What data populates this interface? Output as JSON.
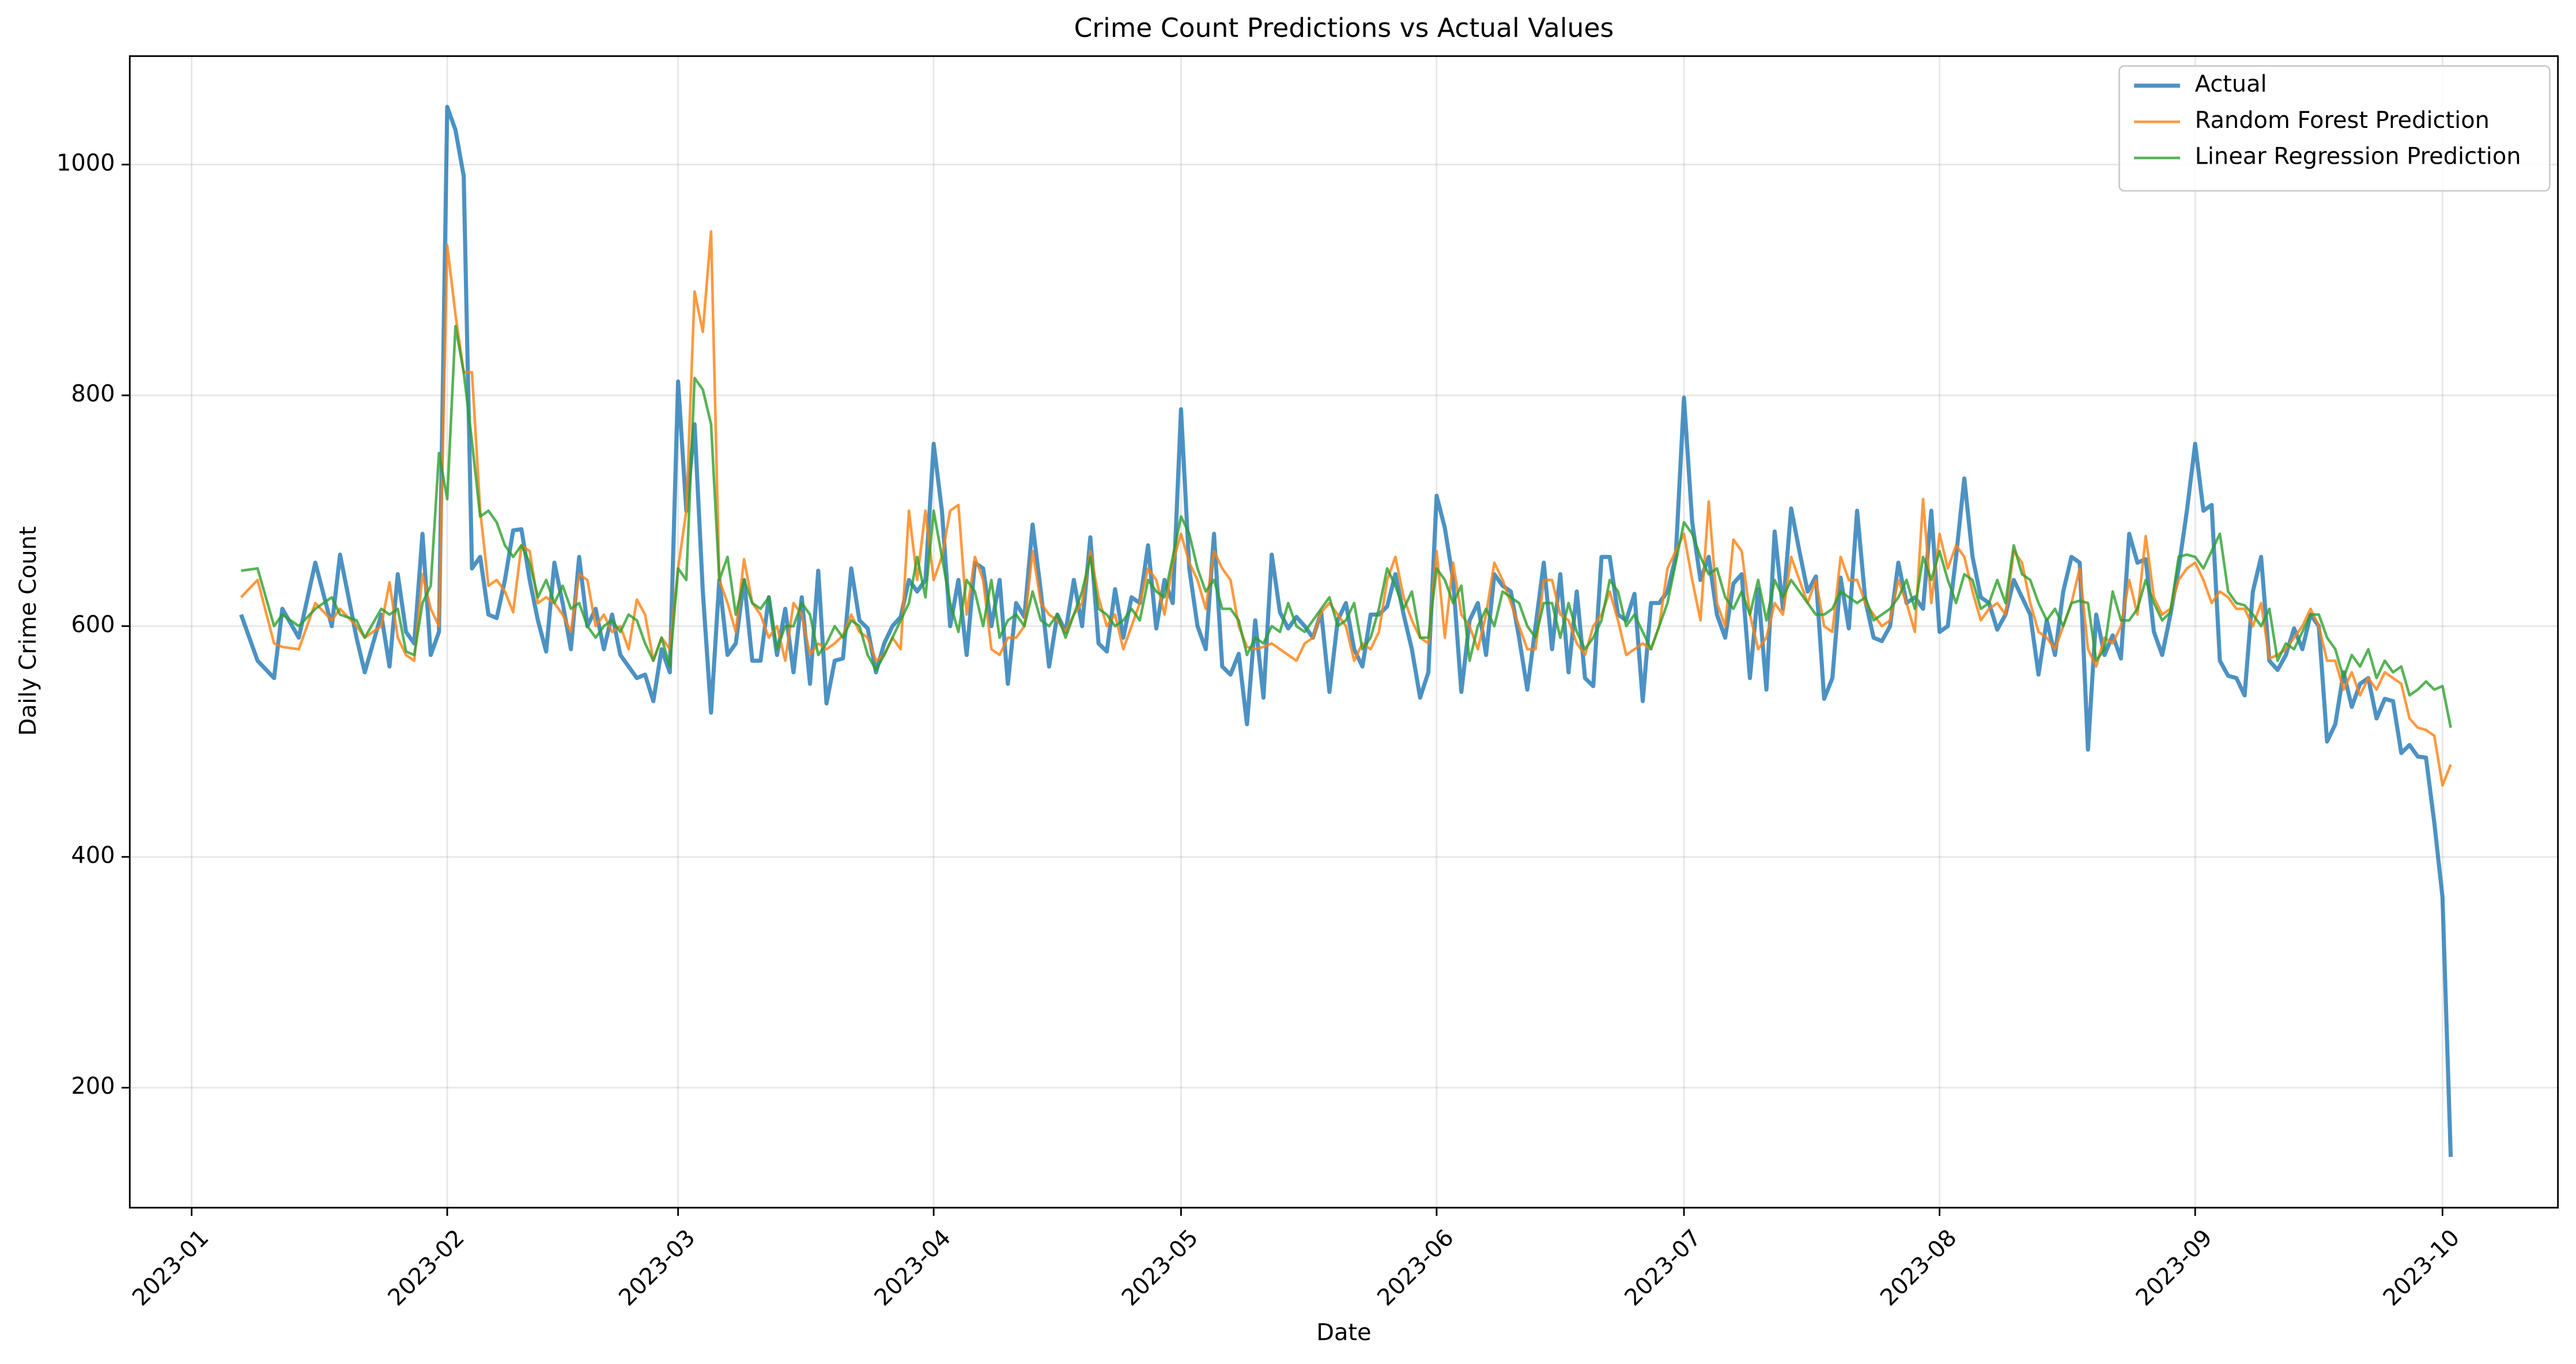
{
  "chart_data": {
    "type": "line",
    "title": "Crime Count Predictions vs Actual Values",
    "x_label": "Date",
    "y_label": "Daily Crime Count",
    "x": [
      6,
      8,
      10,
      11,
      13,
      15,
      17,
      18,
      20,
      21,
      23,
      24,
      25,
      26,
      27,
      28,
      29,
      30,
      31,
      32,
      33,
      34,
      35,
      36,
      37,
      38,
      39,
      40,
      41,
      42,
      43,
      44,
      45,
      46,
      47,
      48,
      49,
      50,
      51,
      52,
      53,
      54,
      55,
      56,
      57,
      58,
      59,
      60,
      61,
      62,
      63,
      64,
      65,
      66,
      67,
      68,
      69,
      70,
      71,
      72,
      73,
      74,
      75,
      76,
      77,
      78,
      79,
      80,
      81,
      82,
      83,
      84,
      85,
      86,
      87,
      88,
      89,
      90,
      91,
      92,
      93,
      94,
      95,
      96,
      97,
      98,
      99,
      100,
      101,
      102,
      103,
      104,
      105,
      106,
      107,
      108,
      109,
      110,
      111,
      112,
      113,
      114,
      115,
      116,
      117,
      118,
      119,
      120,
      121,
      122,
      123,
      124,
      125,
      126,
      127,
      128,
      129,
      130,
      131,
      132,
      133,
      134,
      135,
      136,
      137,
      138,
      139,
      140,
      141,
      142,
      143,
      144,
      145,
      146,
      147,
      148,
      149,
      150,
      151,
      152,
      153,
      154,
      155,
      156,
      157,
      158,
      159,
      160,
      161,
      162,
      163,
      164,
      165,
      166,
      167,
      168,
      169,
      170,
      171,
      172,
      173,
      174,
      175,
      176,
      177,
      178,
      179,
      180,
      181,
      182,
      183,
      184,
      185,
      186,
      187,
      188,
      189,
      190,
      191,
      192,
      193,
      194,
      195,
      196,
      197,
      198,
      199,
      200,
      201,
      202,
      203,
      204,
      205,
      206,
      207,
      208,
      209,
      210,
      211,
      212,
      213,
      214,
      215,
      216,
      217,
      218,
      219,
      220,
      221,
      222,
      223,
      224,
      225,
      226,
      227,
      228,
      229,
      230,
      231,
      232,
      233,
      234,
      235,
      236,
      237,
      238,
      239,
      240,
      241,
      242,
      243,
      244,
      245,
      246,
      247,
      248,
      249,
      250,
      251,
      252,
      253,
      254,
      255,
      256,
      257,
      258,
      259,
      260,
      261,
      262,
      263,
      264,
      265,
      266,
      267,
      268,
      269,
      270,
      271,
      272,
      273,
      274
    ],
    "series": [
      {
        "name": "Actual",
        "color": "#1f77b4",
        "width": 2.5,
        "values": [
          610,
          570,
          555,
          615,
          590,
          655,
          600,
          662,
          590,
          560,
          610,
          565,
          645,
          595,
          585,
          680,
          575,
          595,
          1050,
          1030,
          990,
          650,
          660,
          610,
          607,
          640,
          683,
          684,
          640,
          605,
          578,
          655,
          620,
          580,
          660,
          600,
          615,
          580,
          610,
          575,
          565,
          555,
          558,
          535,
          580,
          560,
          812,
          700,
          775,
          630,
          525,
          640,
          575,
          585,
          640,
          570,
          570,
          625,
          575,
          615,
          560,
          625,
          550,
          648,
          533,
          570,
          572,
          650,
          605,
          598,
          560,
          585,
          600,
          608,
          640,
          630,
          640,
          758,
          700,
          600,
          640,
          575,
          655,
          650,
          600,
          640,
          550,
          620,
          608,
          688,
          630,
          565,
          610,
          595,
          640,
          600,
          677,
          585,
          578,
          632,
          590,
          625,
          620,
          670,
          598,
          640,
          620,
          788,
          650,
          600,
          580,
          680,
          565,
          558,
          576,
          515,
          605,
          538,
          662,
          612,
          598,
          608,
          600,
          590,
          612,
          543,
          605,
          620,
          580,
          565,
          610,
          610,
          617,
          645,
          610,
          580,
          538,
          560,
          713,
          685,
          640,
          543,
          605,
          620,
          575,
          645,
          635,
          630,
          590,
          545,
          600,
          655,
          580,
          645,
          560,
          630,
          555,
          548,
          660,
          660,
          610,
          605,
          628,
          535,
          620,
          620,
          630,
          660,
          798,
          690,
          640,
          660,
          610,
          590,
          637,
          645,
          555,
          632,
          545,
          682,
          615,
          702,
          665,
          630,
          643,
          537,
          555,
          642,
          598,
          700,
          622,
          590,
          587,
          600,
          655,
          620,
          625,
          615,
          700,
          595,
          600,
          660,
          728,
          660,
          625,
          620,
          597,
          610,
          640,
          625,
          610,
          558,
          605,
          575,
          630,
          660,
          655,
          493,
          610,
          575,
          592,
          572,
          680,
          655,
          658,
          595,
          575,
          610,
          650,
          700,
          758,
          700,
          705,
          570,
          557,
          555,
          540,
          630,
          660,
          570,
          562,
          575,
          598,
          580,
          610,
          600,
          500,
          515,
          560,
          530,
          550,
          555,
          520,
          537,
          535,
          490,
          497,
          487,
          486,
          430,
          365,
          140
        ]
      },
      {
        "name": "Random Forest Prediction",
        "color": "#ff7f0e",
        "width": 1.6,
        "values": [
          625,
          640,
          585,
          582,
          580,
          620,
          605,
          615,
          600,
          590,
          600,
          638,
          590,
          575,
          570,
          645,
          615,
          600,
          930,
          870,
          820,
          820,
          700,
          635,
          640,
          630,
          612,
          670,
          665,
          620,
          625,
          620,
          610,
          595,
          645,
          640,
          600,
          610,
          595,
          600,
          580,
          623,
          610,
          570,
          590,
          580,
          650,
          700,
          890,
          855,
          942,
          640,
          620,
          595,
          658,
          620,
          610,
          590,
          600,
          570,
          620,
          610,
          575,
          585,
          580,
          585,
          592,
          610,
          595,
          590,
          570,
          575,
          590,
          580,
          700,
          640,
          700,
          640,
          660,
          700,
          705,
          610,
          660,
          640,
          580,
          575,
          590,
          590,
          600,
          665,
          620,
          610,
          605,
          595,
          610,
          620,
          665,
          625,
          600,
          610,
          580,
          600,
          620,
          650,
          640,
          610,
          655,
          680,
          655,
          640,
          615,
          665,
          650,
          640,
          600,
          582,
          580,
          582,
          585,
          580,
          575,
          570,
          585,
          590,
          612,
          620,
          610,
          600,
          570,
          585,
          580,
          595,
          640,
          660,
          625,
          605,
          590,
          585,
          665,
          590,
          655,
          610,
          600,
          580,
          610,
          655,
          640,
          620,
          600,
          580,
          580,
          640,
          640,
          610,
          605,
          585,
          575,
          600,
          610,
          630,
          605,
          575,
          580,
          585,
          580,
          600,
          650,
          665,
          680,
          640,
          605,
          708,
          620,
          600,
          675,
          665,
          610,
          580,
          590,
          620,
          610,
          660,
          640,
          620,
          640,
          600,
          595,
          660,
          640,
          640,
          620,
          610,
          600,
          605,
          640,
          620,
          595,
          710,
          620,
          680,
          650,
          670,
          660,
          630,
          605,
          615,
          620,
          610,
          665,
          655,
          620,
          595,
          590,
          580,
          600,
          620,
          650,
          580,
          565,
          590,
          585,
          600,
          640,
          610,
          678,
          625,
          610,
          615,
          640,
          650,
          655,
          640,
          620,
          630,
          625,
          615,
          615,
          600,
          620,
          572,
          575,
          580,
          590,
          600,
          615,
          600,
          570,
          570,
          545,
          560,
          540,
          555,
          545,
          560,
          555,
          550,
          520,
          512,
          510,
          505,
          462,
          480
        ]
      },
      {
        "name": "Linear Regression Prediction",
        "color": "#2ca02c",
        "width": 1.6,
        "values": [
          648,
          650,
          600,
          610,
          600,
          615,
          625,
          610,
          605,
          590,
          615,
          610,
          615,
          578,
          575,
          620,
          635,
          750,
          710,
          860,
          820,
          760,
          695,
          700,
          690,
          670,
          660,
          670,
          655,
          625,
          640,
          620,
          635,
          615,
          620,
          600,
          590,
          600,
          605,
          595,
          610,
          605,
          585,
          570,
          590,
          565,
          650,
          640,
          815,
          805,
          775,
          640,
          660,
          610,
          640,
          620,
          615,
          625,
          580,
          600,
          600,
          620,
          610,
          575,
          585,
          600,
          590,
          605,
          600,
          575,
          562,
          575,
          590,
          605,
          620,
          660,
          625,
          700,
          660,
          620,
          595,
          640,
          630,
          600,
          640,
          590,
          605,
          610,
          600,
          630,
          605,
          600,
          610,
          590,
          610,
          630,
          660,
          615,
          610,
          600,
          605,
          615,
          605,
          640,
          630,
          625,
          660,
          695,
          680,
          650,
          630,
          640,
          615,
          615,
          605,
          575,
          590,
          585,
          600,
          595,
          620,
          600,
          595,
          605,
          615,
          625,
          600,
          605,
          620,
          580,
          590,
          615,
          650,
          635,
          615,
          630,
          590,
          590,
          650,
          640,
          620,
          635,
          570,
          600,
          615,
          600,
          630,
          625,
          620,
          600,
          590,
          620,
          620,
          590,
          620,
          595,
          580,
          590,
          605,
          640,
          630,
          600,
          610,
          595,
          580,
          600,
          620,
          655,
          690,
          680,
          660,
          645,
          650,
          625,
          615,
          630,
          610,
          640,
          605,
          640,
          625,
          640,
          630,
          620,
          610,
          610,
          615,
          630,
          625,
          620,
          625,
          605,
          610,
          615,
          625,
          640,
          615,
          660,
          640,
          665,
          640,
          620,
          645,
          640,
          615,
          620,
          640,
          620,
          670,
          645,
          640,
          620,
          605,
          615,
          600,
          620,
          622,
          620,
          570,
          580,
          630,
          605,
          605,
          615,
          640,
          620,
          605,
          612,
          660,
          662,
          660,
          650,
          665,
          680,
          630,
          620,
          618,
          610,
          600,
          615,
          570,
          585,
          580,
          595,
          610,
          610,
          590,
          580,
          555,
          575,
          565,
          580,
          555,
          570,
          560,
          565,
          540,
          545,
          552,
          545,
          548,
          512
        ]
      }
    ],
    "xlim": [
      -7.5,
      287
    ],
    "xticks": [
      {
        "value": 0,
        "label": "2023-01"
      },
      {
        "value": 31,
        "label": "2023-02"
      },
      {
        "value": 59,
        "label": "2023-03"
      },
      {
        "value": 90,
        "label": "2023-04"
      },
      {
        "value": 120,
        "label": "2023-05"
      },
      {
        "value": 151,
        "label": "2023-06"
      },
      {
        "value": 181,
        "label": "2023-07"
      },
      {
        "value": 212,
        "label": "2023-08"
      },
      {
        "value": 243,
        "label": "2023-09"
      },
      {
        "value": 273,
        "label": "2023-10"
      }
    ],
    "ylim": [
      96,
      1094
    ],
    "yticks": [
      200,
      400,
      600,
      800,
      1000
    ],
    "grid": true,
    "legend": "upper right"
  }
}
